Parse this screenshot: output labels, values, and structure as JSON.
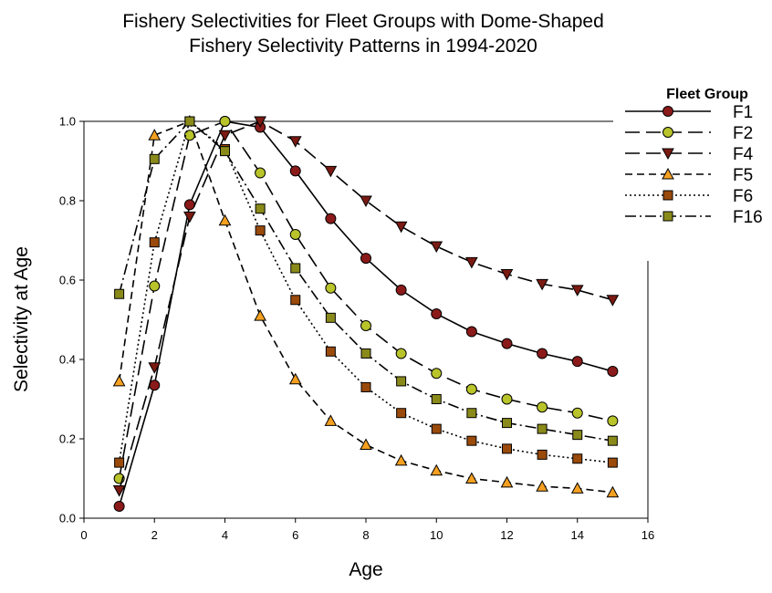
{
  "chart_data": {
    "type": "line",
    "title": [
      "Fishery Selectivities for Fleet Groups with Dome-Shaped",
      "Fishery Selectivity Patterns in 1994-2020"
    ],
    "xlabel": "Age",
    "ylabel": "Selectivity at Age",
    "xlim": [
      0,
      16
    ],
    "ylim": [
      0.0,
      1.0
    ],
    "xticks": [
      "0",
      "2",
      "4",
      "6",
      "8",
      "10",
      "12",
      "14",
      "16"
    ],
    "yticks": [
      "0.0",
      "0.2",
      "0.4",
      "0.6",
      "0.8",
      "1.0"
    ],
    "grid": false,
    "legend": {
      "title": "Fleet Group",
      "placement": "top-right"
    },
    "x": [
      1,
      2,
      3,
      4,
      5,
      6,
      7,
      8,
      9,
      10,
      11,
      12,
      13,
      14,
      15
    ],
    "series": [
      {
        "name": "F1",
        "color": "#8b1a1a",
        "marker": "circle",
        "dash": "solid",
        "values": [
          0.03,
          0.335,
          0.79,
          1.0,
          0.985,
          0.875,
          0.755,
          0.655,
          0.575,
          0.515,
          0.47,
          0.44,
          0.415,
          0.395,
          0.37
        ]
      },
      {
        "name": "F2",
        "color": "#b8c42a",
        "marker": "circle",
        "dash": "long-dash",
        "values": [
          0.1,
          0.585,
          0.965,
          1.0,
          0.87,
          0.715,
          0.58,
          0.485,
          0.415,
          0.365,
          0.325,
          0.3,
          0.28,
          0.265,
          0.245
        ]
      },
      {
        "name": "F4",
        "color": "#7a1a12",
        "marker": "triangle-down",
        "dash": "long-dash",
        "values": [
          0.07,
          0.38,
          0.76,
          0.965,
          1.0,
          0.95,
          0.875,
          0.8,
          0.735,
          0.685,
          0.645,
          0.615,
          0.59,
          0.575,
          0.55
        ]
      },
      {
        "name": "F5",
        "color": "#f5a020",
        "marker": "triangle-up",
        "dash": "short-dash",
        "values": [
          0.345,
          0.965,
          1.0,
          0.75,
          0.51,
          0.35,
          0.245,
          0.185,
          0.145,
          0.12,
          0.1,
          0.09,
          0.08,
          0.075,
          0.065
        ]
      },
      {
        "name": "F6",
        "color": "#9a4a0a",
        "marker": "square",
        "dash": "dotted",
        "values": [
          0.14,
          0.695,
          1.0,
          0.93,
          0.725,
          0.55,
          0.42,
          0.33,
          0.265,
          0.225,
          0.195,
          0.175,
          0.16,
          0.15,
          0.14
        ]
      },
      {
        "name": "F16",
        "color": "#8a8a1a",
        "marker": "square",
        "dash": "dash-dot",
        "values": [
          0.565,
          0.905,
          1.0,
          0.925,
          0.78,
          0.63,
          0.505,
          0.415,
          0.345,
          0.3,
          0.265,
          0.24,
          0.225,
          0.21,
          0.195
        ]
      }
    ]
  }
}
